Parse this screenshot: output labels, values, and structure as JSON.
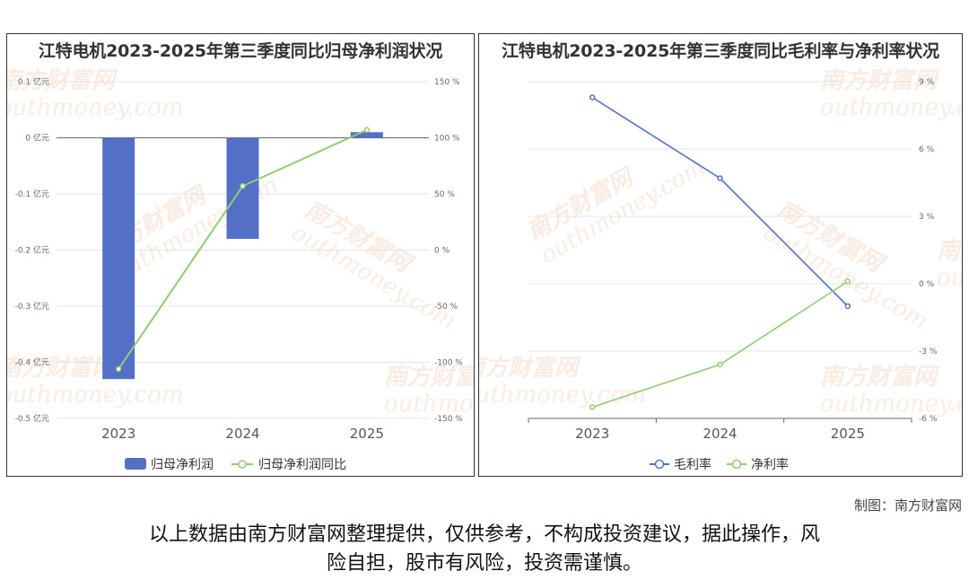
{
  "chart_data": [
    {
      "type": "bar+line",
      "title": "江特电机2023-2025年第三季度同比归母净利润状况",
      "categories": [
        "2023",
        "2024",
        "2025"
      ],
      "series": [
        {
          "name": "归母净利润",
          "type": "bar",
          "axis": "left",
          "color": "#5470c6",
          "values": [
            -0.43,
            -0.18,
            0.01
          ]
        },
        {
          "name": "归母净利润同比",
          "type": "line",
          "axis": "right",
          "color": "#91cc75",
          "values": [
            -106,
            57,
            107
          ]
        }
      ],
      "y_left": {
        "ticks": [
          "0.1 亿元",
          "0 亿元",
          "-0.1 亿元",
          "-0.2 亿元",
          "-0.3 亿元",
          "-0.4 亿元",
          "-0.5 亿元"
        ],
        "range": [
          -0.5,
          0.1
        ]
      },
      "y_right": {
        "ticks": [
          "150 %",
          "100 %",
          "50 %",
          "0 %",
          "-50 %",
          "-100 %",
          "-150 %"
        ],
        "range": [
          -150,
          150
        ]
      },
      "legend": "bottom"
    },
    {
      "type": "line",
      "title": "江特电机2023-2025年第三季度同比毛利率与净利率状况",
      "categories": [
        "2023",
        "2024",
        "2025"
      ],
      "series": [
        {
          "name": "毛利率",
          "color": "#5470c6",
          "values": [
            8.3,
            4.7,
            -1.0
          ]
        },
        {
          "name": "净利率",
          "color": "#91cc75",
          "values": [
            -5.5,
            -3.6,
            0.1
          ]
        }
      ],
      "y_right": {
        "ticks": [
          "9 %",
          "6 %",
          "3 %",
          "0 %",
          "-3 %",
          "-6 %"
        ],
        "range": [
          -6,
          9
        ]
      },
      "legend": "bottom"
    }
  ],
  "watermark": {
    "cn": "南方财富网",
    "en": "outhmoney.com"
  },
  "credit": "制图：南方财富网",
  "disclaimer": {
    "line1": "以上数据由南方财富网整理提供，仅供参考，不构成投资建议，据此操作，风",
    "line2": "险自担，股市有风险，投资需谨慎。"
  }
}
